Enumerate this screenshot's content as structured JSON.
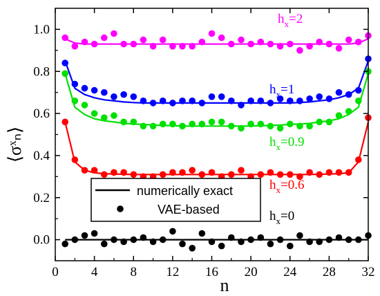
{
  "chart_data": {
    "type": "scatter",
    "xlabel": "n",
    "ylabel": "⟨σˣₙ⟩",
    "xlim": [
      0,
      32
    ],
    "ylim": [
      -0.1,
      1.1
    ],
    "x_ticks": [
      "0",
      "4",
      "8",
      "12",
      "16",
      "20",
      "24",
      "28",
      "32"
    ],
    "y_ticks": [
      "0.0",
      "0.2",
      "0.4",
      "0.6",
      "0.8",
      "1.0"
    ],
    "x": [
      1,
      2,
      3,
      4,
      5,
      6,
      7,
      8,
      9,
      10,
      11,
      12,
      13,
      14,
      15,
      16,
      17,
      18,
      19,
      20,
      21,
      22,
      23,
      24,
      25,
      26,
      27,
      28,
      29,
      30,
      31,
      32
    ],
    "legend": {
      "position": "lower-center",
      "line_label": "numerically exact",
      "marker_label": "VAE-based"
    },
    "series": [
      {
        "name": "h_x=2",
        "label_main": "h",
        "label_sub": "x",
        "label_rest": "=2",
        "color": "#ff00ff",
        "exact": [
          0.955,
          0.935,
          0.93,
          0.93,
          0.93,
          0.93,
          0.93,
          0.93,
          0.93,
          0.93,
          0.93,
          0.93,
          0.93,
          0.93,
          0.93,
          0.93,
          0.93,
          0.93,
          0.93,
          0.93,
          0.93,
          0.93,
          0.93,
          0.93,
          0.93,
          0.93,
          0.93,
          0.93,
          0.93,
          0.93,
          0.935,
          0.955
        ],
        "vae": [
          0.96,
          0.92,
          0.94,
          0.93,
          0.96,
          0.98,
          0.93,
          0.93,
          0.95,
          0.92,
          0.95,
          0.92,
          0.92,
          0.92,
          0.94,
          0.98,
          0.96,
          0.93,
          0.95,
          0.93,
          0.94,
          0.93,
          0.92,
          0.93,
          0.9,
          0.92,
          0.94,
          0.93,
          0.91,
          0.95,
          0.94,
          0.97
        ]
      },
      {
        "name": "h_x=1",
        "label_main": "h",
        "label_sub": "x",
        "label_rest": "=1",
        "color": "#0000ff",
        "exact": [
          0.85,
          0.72,
          0.69,
          0.675,
          0.665,
          0.66,
          0.655,
          0.652,
          0.65,
          0.65,
          0.65,
          0.65,
          0.65,
          0.65,
          0.65,
          0.65,
          0.65,
          0.65,
          0.65,
          0.65,
          0.65,
          0.65,
          0.65,
          0.65,
          0.652,
          0.655,
          0.66,
          0.665,
          0.675,
          0.69,
          0.72,
          0.85
        ],
        "vae": [
          0.84,
          0.74,
          0.72,
          0.71,
          0.7,
          0.68,
          0.69,
          0.68,
          0.66,
          0.65,
          0.66,
          0.65,
          0.66,
          0.66,
          0.65,
          0.68,
          0.68,
          0.66,
          0.64,
          0.66,
          0.66,
          0.65,
          0.67,
          0.66,
          0.66,
          0.67,
          0.68,
          0.67,
          0.7,
          0.69,
          0.71,
          0.86
        ]
      },
      {
        "name": "h_x=0.9",
        "label_main": "h",
        "label_sub": "x",
        "label_rest": "=0.9",
        "color": "#00e000",
        "exact": [
          0.79,
          0.63,
          0.595,
          0.575,
          0.565,
          0.56,
          0.553,
          0.55,
          0.548,
          0.545,
          0.543,
          0.542,
          0.54,
          0.54,
          0.54,
          0.54,
          0.54,
          0.54,
          0.54,
          0.54,
          0.542,
          0.543,
          0.545,
          0.548,
          0.55,
          0.553,
          0.56,
          0.565,
          0.575,
          0.595,
          0.63,
          0.79
        ],
        "vae": [
          0.79,
          0.66,
          0.64,
          0.6,
          0.58,
          0.59,
          0.56,
          0.56,
          0.54,
          0.54,
          0.55,
          0.55,
          0.54,
          0.55,
          0.55,
          0.56,
          0.56,
          0.54,
          0.53,
          0.55,
          0.55,
          0.54,
          0.53,
          0.55,
          0.54,
          0.54,
          0.56,
          0.56,
          0.59,
          0.61,
          0.66,
          0.8
        ]
      },
      {
        "name": "h_x=0.6",
        "label_main": "h",
        "label_sub": "x",
        "label_rest": "=0.6",
        "color": "#ff0000",
        "exact": [
          0.56,
          0.37,
          0.33,
          0.318,
          0.314,
          0.312,
          0.311,
          0.31,
          0.31,
          0.31,
          0.31,
          0.31,
          0.31,
          0.31,
          0.31,
          0.31,
          0.31,
          0.31,
          0.31,
          0.31,
          0.31,
          0.31,
          0.31,
          0.31,
          0.31,
          0.31,
          0.311,
          0.312,
          0.314,
          0.318,
          0.37,
          0.56
        ],
        "vae": [
          0.56,
          0.38,
          0.33,
          0.33,
          0.31,
          0.32,
          0.32,
          0.31,
          0.3,
          0.3,
          0.31,
          0.32,
          0.32,
          0.33,
          0.31,
          0.32,
          0.3,
          0.31,
          0.33,
          0.3,
          0.31,
          0.32,
          0.31,
          0.31,
          0.3,
          0.32,
          0.31,
          0.32,
          0.32,
          0.32,
          0.38,
          0.58
        ]
      },
      {
        "name": "h_x=0",
        "label_main": "h",
        "label_sub": "x",
        "label_rest": "=0",
        "color": "#000000",
        "exact": [
          0,
          0,
          0,
          0,
          0,
          0,
          0,
          0,
          0,
          0,
          0,
          0,
          0,
          0,
          0,
          0,
          0,
          0,
          0,
          0,
          0,
          0,
          0,
          0,
          0,
          0,
          0,
          0,
          0,
          0,
          0,
          0
        ],
        "vae": [
          -0.02,
          0.0,
          0.02,
          0.03,
          -0.02,
          0.0,
          -0.01,
          0.0,
          0.01,
          -0.01,
          0.0,
          0.04,
          -0.02,
          -0.04,
          0.03,
          -0.01,
          -0.03,
          0.01,
          -0.01,
          0.0,
          0.01,
          -0.02,
          0.0,
          -0.03,
          0.02,
          -0.01,
          -0.01,
          0.0,
          0.01,
          0.0,
          0.0,
          0.02
        ]
      }
    ]
  }
}
